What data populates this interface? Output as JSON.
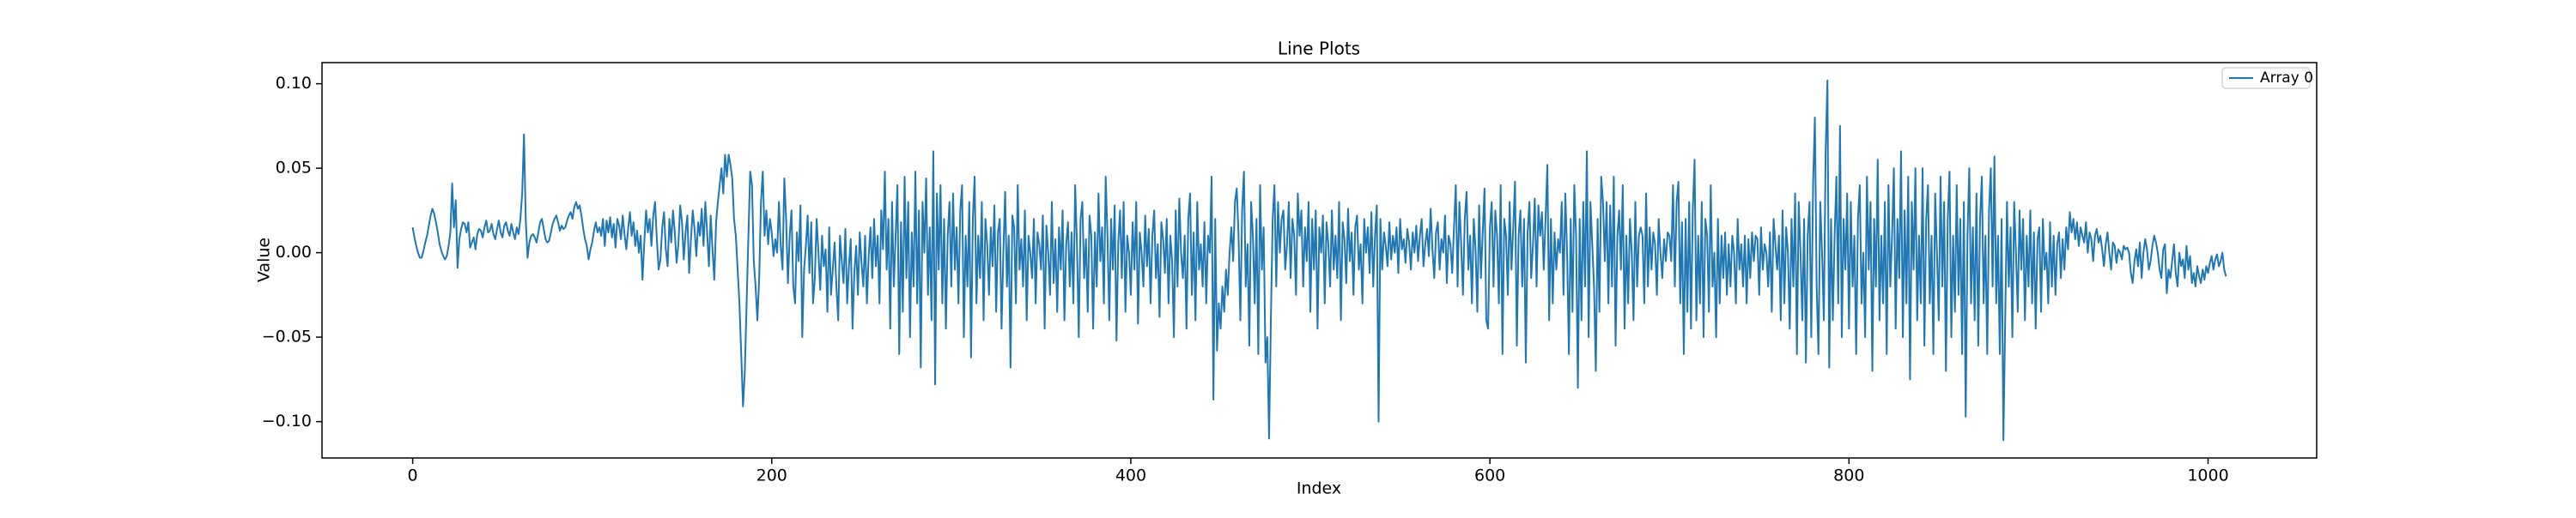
{
  "chart_data": {
    "type": "line",
    "title": "Line Plots",
    "x_label": "Index",
    "y_label": "Value",
    "xlim": [
      -50.5,
      1060.5
    ],
    "xticks": [
      0,
      200,
      400,
      600,
      800,
      1000
    ],
    "ylim": [
      -0.1215,
      0.1125
    ],
    "yticks": [
      {
        "value": -0.1,
        "label": "−0.10"
      },
      {
        "value": -0.05,
        "label": "−0.05"
      },
      {
        "value": 0,
        "label": "0.00"
      },
      {
        "value": 0.05,
        "label": "0.05"
      },
      {
        "value": 0.1,
        "label": "0.10"
      }
    ],
    "grid": false,
    "legend": "upper right",
    "series": [
      {
        "name": "Array 0",
        "color": "#1f77b4",
        "values": [
          0.015,
          0.009,
          0.004,
          0.0,
          -0.003,
          -0.003,
          0.001,
          0.006,
          0.01,
          0.016,
          0.022,
          0.026,
          0.023,
          0.018,
          0.012,
          0.005,
          0.001,
          -0.002,
          -0.004,
          -0.002,
          0.004,
          0.012,
          0.041,
          0.015,
          0.031,
          -0.009,
          0.008,
          0.014,
          0.018,
          0.017,
          0.012,
          0.018,
          0.003,
          0.006,
          0.009,
          0.002,
          0.011,
          0.014,
          0.013,
          0.009,
          0.015,
          0.019,
          0.012,
          0.013,
          0.017,
          0.011,
          0.008,
          0.014,
          0.019,
          0.012,
          0.009,
          0.016,
          0.018,
          0.013,
          0.01,
          0.017,
          0.012,
          0.008,
          0.015,
          0.011,
          0.02,
          0.035,
          0.07,
          0.019,
          -0.003,
          0.006,
          0.01,
          0.011,
          0.009,
          0.006,
          0.012,
          0.018,
          0.02,
          0.014,
          0.008,
          0.006,
          0.007,
          0.012,
          0.017,
          0.02,
          0.022,
          0.018,
          0.013,
          0.016,
          0.014,
          0.015,
          0.019,
          0.022,
          0.024,
          0.02,
          0.027,
          0.03,
          0.026,
          0.028,
          0.022,
          0.014,
          0.008,
          0.004,
          -0.004,
          0.002,
          0.006,
          0.013,
          0.018,
          0.012,
          0.015,
          0.01,
          0.02,
          0.004,
          0.019,
          0.012,
          0.021,
          0.009,
          0.017,
          0.003,
          0.02,
          0.016,
          0.008,
          0.022,
          0.011,
          0.002,
          0.014,
          0.024,
          0.01,
          0.018,
          0.004,
          0.013,
          0.0,
          0.01,
          -0.016,
          0.006,
          0.025,
          0.012,
          0.02,
          0.004,
          0.022,
          0.03,
          0.008,
          -0.01,
          -0.004,
          0.015,
          0.024,
          0.002,
          -0.008,
          0.02,
          0.006,
          0.025,
          0.012,
          -0.006,
          0.005,
          0.028,
          0.018,
          -0.004,
          0.012,
          0.022,
          -0.012,
          0.008,
          0.025,
          0.014,
          -0.002,
          0.018,
          0.01,
          0.026,
          0.004,
          0.03,
          0.012,
          -0.008,
          0.022,
          0.002,
          -0.016,
          0.018,
          0.03,
          0.04,
          0.05,
          0.035,
          0.058,
          0.045,
          0.058,
          0.052,
          0.044,
          0.02,
          0.01,
          -0.01,
          -0.03,
          -0.06,
          -0.091,
          -0.07,
          -0.03,
          0.01,
          0.048,
          0.04,
          -0.005,
          -0.02,
          -0.04,
          -0.015,
          0.03,
          0.048,
          0.01,
          0.025,
          0.005,
          0.02,
          0.012,
          -0.002,
          0.008,
          0.0,
          0.03,
          0.004,
          -0.01,
          0.044,
          0.02,
          -0.018,
          0.01,
          0.025,
          -0.02,
          -0.03,
          0.012,
          -0.005,
          0.028,
          -0.05,
          -0.01,
          0.004,
          0.022,
          -0.012,
          0.018,
          -0.03,
          -0.015,
          0.02,
          0.0,
          -0.022,
          0.01,
          -0.008,
          0.002,
          -0.035,
          0.015,
          -0.025,
          -0.01,
          0.006,
          -0.02,
          -0.04,
          0.01,
          -0.005,
          -0.018,
          0.014,
          -0.03,
          -0.008,
          0.008,
          -0.045,
          -0.012,
          0.004,
          -0.025,
          0.012,
          -0.006,
          -0.02,
          0.01,
          -0.03,
          -0.002,
          0.015,
          -0.015,
          0.02,
          -0.008,
          0.01,
          -0.03,
          0.025,
          0.002,
          0.048,
          -0.01,
          0.02,
          -0.045,
          0.03,
          -0.02,
          0.01,
          0.04,
          -0.06,
          0.018,
          -0.035,
          0.045,
          -0.015,
          0.03,
          -0.05,
          0.012,
          -0.02,
          0.048,
          -0.03,
          0.025,
          -0.068,
          0.03,
          0.0,
          0.044,
          -0.025,
          0.015,
          -0.04,
          0.06,
          -0.078,
          0.035,
          -0.01,
          0.04,
          -0.03,
          0.02,
          -0.045,
          0.01,
          0.03,
          -0.02,
          0.035,
          -0.01,
          0.015,
          -0.03,
          0.025,
          0.04,
          -0.05,
          0.01,
          -0.02,
          0.03,
          -0.062,
          0.02,
          0.045,
          -0.03,
          0.01,
          -0.015,
          0.03,
          -0.04,
          0.02,
          0.005,
          -0.025,
          0.015,
          -0.008,
          0.028,
          -0.035,
          0.012,
          0.02,
          -0.045,
          0.0,
          0.036,
          -0.02,
          0.01,
          -0.068,
          0.022,
          0.015,
          -0.03,
          0.04,
          -0.01,
          0.008,
          -0.02,
          0.025,
          -0.04,
          0.01,
          0.0,
          -0.015,
          0.02,
          -0.03,
          0.012,
          0.005,
          -0.01,
          0.022,
          -0.045,
          0.016,
          0.0,
          -0.025,
          0.03,
          -0.018,
          0.008,
          -0.035,
          0.015,
          -0.01,
          0.025,
          -0.04,
          0.005,
          0.018,
          -0.02,
          0.012,
          -0.03,
          0.04,
          0.005,
          -0.05,
          0.02,
          0.03,
          -0.015,
          0.008,
          -0.035,
          0.022,
          0.01,
          -0.045,
          0.012,
          -0.02,
          0.035,
          -0.005,
          0.015,
          -0.03,
          0.045,
          0.01,
          -0.04,
          0.02,
          -0.01,
          0.028,
          -0.052,
          0.006,
          0.025,
          -0.015,
          0.03,
          -0.035,
          0.01,
          0.0,
          -0.025,
          0.018,
          -0.01,
          0.03,
          -0.042,
          0.012,
          0.0,
          -0.02,
          0.022,
          -0.008,
          0.014,
          -0.03,
          0.01,
          0.025,
          -0.015,
          0.005,
          -0.038,
          0.018,
          0.008,
          -0.012,
          0.02,
          -0.03,
          0.01,
          -0.005,
          -0.05,
          0.025,
          -0.02,
          0.032,
          0.0,
          -0.015,
          0.01,
          -0.045,
          0.02,
          0.035,
          -0.025,
          0.012,
          -0.04,
          0.03,
          -0.01,
          0.005,
          -0.02,
          0.018,
          -0.03,
          0.01,
          0.0,
          0.045,
          -0.087,
          0.02,
          -0.058,
          -0.03,
          -0.045,
          -0.02,
          -0.035,
          -0.01,
          -0.025,
          0.0,
          0.015,
          -0.005,
          0.03,
          0.038,
          0.01,
          -0.04,
          0.025,
          0.048,
          -0.02,
          0.005,
          -0.055,
          0.03,
          0.01,
          -0.03,
          0.02,
          -0.06,
          0.04,
          -0.01,
          0.015,
          -0.065,
          -0.05,
          -0.11,
          -0.04,
          0.02,
          0.04,
          -0.02,
          0.03,
          0.0,
          0.02,
          0.025,
          -0.01,
          0.005,
          0.03,
          -0.015,
          0.02,
          0.01,
          -0.025,
          0.035,
          0.01,
          0.025,
          -0.02,
          0.015,
          -0.005,
          0.03,
          -0.035,
          0.02,
          -0.01,
          0.025,
          -0.045,
          0.015,
          0.0,
          0.022,
          -0.03,
          0.018,
          0.005,
          -0.02,
          0.025,
          -0.01,
          0.01,
          -0.015,
          0.03,
          -0.04,
          0.018,
          0.008,
          -0.018,
          0.026,
          -0.005,
          0.012,
          -0.025,
          0.015,
          0.022,
          -0.01,
          0.005,
          -0.03,
          0.02,
          0.0,
          0.015,
          -0.012,
          0.024,
          -0.02,
          0.01,
          0.028,
          -0.1,
          0.02,
          -0.01,
          0.012,
          0.004,
          -0.008,
          0.018,
          -0.004,
          0.01,
          0.0,
          0.015,
          -0.012,
          0.02,
          0.002,
          0.008,
          -0.006,
          0.014,
          0.006,
          -0.01,
          0.012,
          0.0,
          0.016,
          -0.005,
          0.01,
          0.02,
          -0.008,
          0.005,
          0.014,
          -0.002,
          0.026,
          0.002,
          -0.015,
          0.012,
          0.018,
          -0.01,
          0.008,
          0.0,
          0.022,
          -0.018,
          0.01,
          0.005,
          -0.012,
          0.015,
          0.04,
          -0.02,
          0.03,
          0.005,
          -0.025,
          0.02,
          0.036,
          -0.01,
          0.01,
          -0.03,
          0.02,
          0.002,
          -0.035,
          0.028,
          -0.015,
          0.012,
          0.038,
          -0.04,
          -0.045,
          0.015,
          0.03,
          -0.02,
          0.025,
          0.01,
          -0.03,
          0.04,
          -0.06,
          0.02,
          0.01,
          -0.025,
          0.03,
          -0.01,
          0.015,
          0.042,
          -0.055,
          0.01,
          0.025,
          -0.02,
          0.02,
          -0.065,
          0.012,
          0.03,
          -0.015,
          0.005,
          0.032,
          -0.02,
          0.028,
          0.01,
          0.024,
          -0.01,
          0.02,
          0.052,
          -0.04,
          0.02,
          -0.03,
          0.012,
          -0.01,
          0.008,
          0.0,
          0.03,
          -0.025,
          0.035,
          0.0,
          -0.06,
          0.02,
          -0.035,
          0.04,
          0.01,
          -0.08,
          0.02,
          -0.04,
          0.03,
          -0.02,
          0.06,
          -0.05,
          0.03,
          0.005,
          -0.02,
          -0.07,
          0.02,
          -0.035,
          0.045,
          0.03,
          -0.005,
          0.03,
          -0.03,
          0.028,
          -0.02,
          0.045,
          -0.055,
          0.01,
          0.025,
          -0.01,
          0.04,
          -0.045,
          0.01,
          -0.03,
          0.02,
          0.0,
          -0.04,
          0.03,
          -0.02,
          0.01,
          0.015,
          0.01,
          -0.03,
          0.035,
          -0.02,
          0.015,
          -0.01,
          0.012,
          0.005,
          -0.025,
          0.02,
          0.0,
          -0.015,
          0.008,
          -0.005,
          0.012,
          0.01,
          -0.005,
          0.04,
          -0.02,
          0.03,
          0.042,
          -0.03,
          0.018,
          -0.06,
          0.02,
          -0.035,
          0.03,
          -0.045,
          0.025,
          0.055,
          -0.04,
          0.01,
          -0.03,
          0.03,
          -0.05,
          0.02,
          0.01,
          -0.035,
          0.04,
          -0.02,
          0.0,
          -0.05,
          0.02,
          -0.03,
          0.01,
          -0.015,
          0.012,
          -0.025,
          0.005,
          -0.02,
          0.01,
          0.0,
          -0.03,
          0.02,
          -0.01,
          0.005,
          -0.02,
          0.01,
          -0.03,
          0.008,
          -0.015,
          0.012,
          -0.005,
          0.01,
          0.008,
          -0.025,
          0.015,
          -0.01,
          0.005,
          0.0,
          -0.02,
          0.012,
          -0.035,
          0.02,
          0.005,
          -0.01,
          0.01,
          -0.04,
          0.025,
          -0.03,
          0.015,
          0.0,
          -0.045,
          0.02,
          -0.02,
          0.035,
          -0.06,
          0.03,
          0.0,
          -0.04,
          0.02,
          -0.065,
          0.01,
          0.03,
          -0.05,
          0.04,
          0.08,
          -0.02,
          -0.06,
          0.03,
          0.0,
          -0.04,
          0.06,
          0.102,
          -0.068,
          0.02,
          -0.04,
          0.01,
          0.045,
          -0.03,
          0.075,
          -0.05,
          0.02,
          -0.01,
          0.035,
          -0.045,
          0.03,
          -0.02,
          0.01,
          -0.06,
          0.02,
          0.04,
          -0.03,
          0.0,
          -0.05,
          0.045,
          -0.01,
          0.03,
          -0.07,
          0.02,
          -0.02,
          0.055,
          -0.04,
          0.01,
          -0.03,
          0.03,
          -0.06,
          0.04,
          -0.02,
          0.01,
          0.05,
          -0.045,
          0.02,
          -0.015,
          0.06,
          -0.05,
          0.025,
          -0.03,
          0.045,
          -0.075,
          0.03,
          -0.01,
          0.05,
          -0.04,
          0.01,
          -0.03,
          0.05,
          -0.055,
          0.02,
          0.04,
          -0.03,
          0.01,
          -0.06,
          0.035,
          0.0,
          -0.04,
          0.045,
          -0.02,
          0.03,
          -0.07,
          0.02,
          0.048,
          -0.05,
          0.01,
          -0.035,
          0.04,
          -0.025,
          0.02,
          -0.06,
          0.03,
          -0.097,
          0.01,
          0.05,
          -0.03,
          0.015,
          -0.04,
          0.035,
          -0.055,
          0.02,
          0.045,
          -0.03,
          0.01,
          -0.06,
          0.025,
          0.05,
          -0.02,
          0.057,
          -0.03,
          0.01,
          -0.06,
          0.02,
          -0.111,
          -0.04,
          0.03,
          -0.02,
          0.015,
          -0.05,
          0.03,
          0.0,
          -0.035,
          0.025,
          -0.01,
          0.02,
          -0.04,
          0.01,
          -0.02,
          0.025,
          -0.03,
          0.012,
          -0.045,
          0.008,
          0.015,
          -0.035,
          0.02,
          -0.01,
          0.0,
          -0.03,
          0.018,
          -0.02,
          0.01,
          -0.025,
          0.005,
          0.012,
          -0.015,
          0.008,
          -0.01,
          0.015,
          0.002,
          0.024,
          0.012,
          0.02,
          0.008,
          0.018,
          0.004,
          0.015,
          0.01,
          0.006,
          0.018,
          0.0,
          0.012,
          0.008,
          -0.005,
          0.01,
          0.014,
          0.006,
          0.01,
          0.002,
          -0.008,
          0.005,
          0.012,
          0.0,
          -0.01,
          0.006,
          0.004,
          -0.006,
          0.002,
          0.0,
          -0.004,
          0.004,
          0.002,
          0.003,
          0.0,
          -0.012,
          -0.018,
          -0.005,
          0.002,
          -0.008,
          0.006,
          -0.015,
          0.0,
          0.008,
          0.002,
          -0.01,
          -0.005,
          0.004,
          0.01,
          0.006,
          0.0,
          -0.01,
          -0.015,
          0.002,
          0.005,
          -0.024,
          -0.01,
          -0.015,
          -0.005,
          0.005,
          -0.012,
          -0.02,
          0.0,
          -0.008,
          -0.004,
          -0.015,
          0.004,
          -0.01,
          -0.002,
          -0.018,
          -0.012,
          -0.02,
          -0.008,
          -0.014,
          -0.018,
          -0.01,
          -0.016,
          -0.008,
          -0.012,
          -0.006,
          -0.002,
          -0.01,
          -0.004,
          -0.001,
          -0.008,
          -0.005,
          0.0,
          -0.01,
          -0.014
        ]
      }
    ]
  }
}
